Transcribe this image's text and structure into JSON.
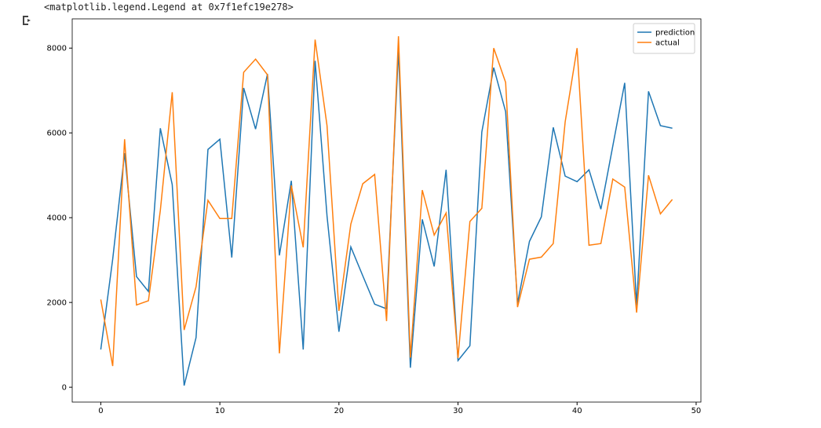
{
  "output_text": "<matplotlib.legend.Legend at 0x7f1efc19e278>",
  "chart_data": {
    "type": "line",
    "x": [
      0,
      1,
      2,
      3,
      4,
      5,
      6,
      7,
      8,
      9,
      10,
      11,
      12,
      13,
      14,
      15,
      16,
      17,
      18,
      19,
      20,
      21,
      22,
      23,
      24,
      25,
      26,
      27,
      28,
      29,
      30,
      31,
      32,
      33,
      34,
      35,
      36,
      37,
      38,
      39,
      40,
      41,
      42,
      43,
      44,
      45,
      46,
      47,
      48
    ],
    "series": [
      {
        "name": "prediction",
        "color": "#1f77b4",
        "values": [
          890,
          3020,
          5520,
          2610,
          2260,
          6110,
          4780,
          40,
          1170,
          5610,
          5850,
          3060,
          7060,
          6090,
          7390,
          3110,
          4870,
          890,
          7700,
          4040,
          1310,
          3310,
          2630,
          1960,
          1850,
          7960,
          460,
          3960,
          2850,
          5130,
          630,
          980,
          6020,
          7540,
          6500,
          1980,
          3440,
          4020,
          6130,
          4980,
          4850,
          5130,
          4200,
          5690,
          7180,
          1930,
          6980,
          6170,
          6110
        ]
      },
      {
        "name": "actual",
        "color": "#ff7f0e",
        "values": [
          2070,
          500,
          5850,
          1940,
          2040,
          4170,
          6960,
          1350,
          2370,
          4410,
          3980,
          3980,
          7430,
          7740,
          7370,
          800,
          4760,
          3300,
          8200,
          6170,
          1800,
          3850,
          4800,
          5020,
          1560,
          8280,
          700,
          4650,
          3590,
          4110,
          690,
          3910,
          4220,
          8000,
          7190,
          1890,
          3020,
          3070,
          3390,
          6260,
          8000,
          3350,
          3390,
          4910,
          4720,
          1760,
          5000,
          4090,
          4430
        ]
      }
    ],
    "xlim": [
      -2.4,
      50.4
    ],
    "xticks": [
      0,
      10,
      20,
      30,
      40,
      50
    ],
    "ylim": [
      -350,
      8690
    ],
    "yticks": [
      0,
      2000,
      4000,
      6000,
      8000
    ],
    "legend": "upper right"
  }
}
